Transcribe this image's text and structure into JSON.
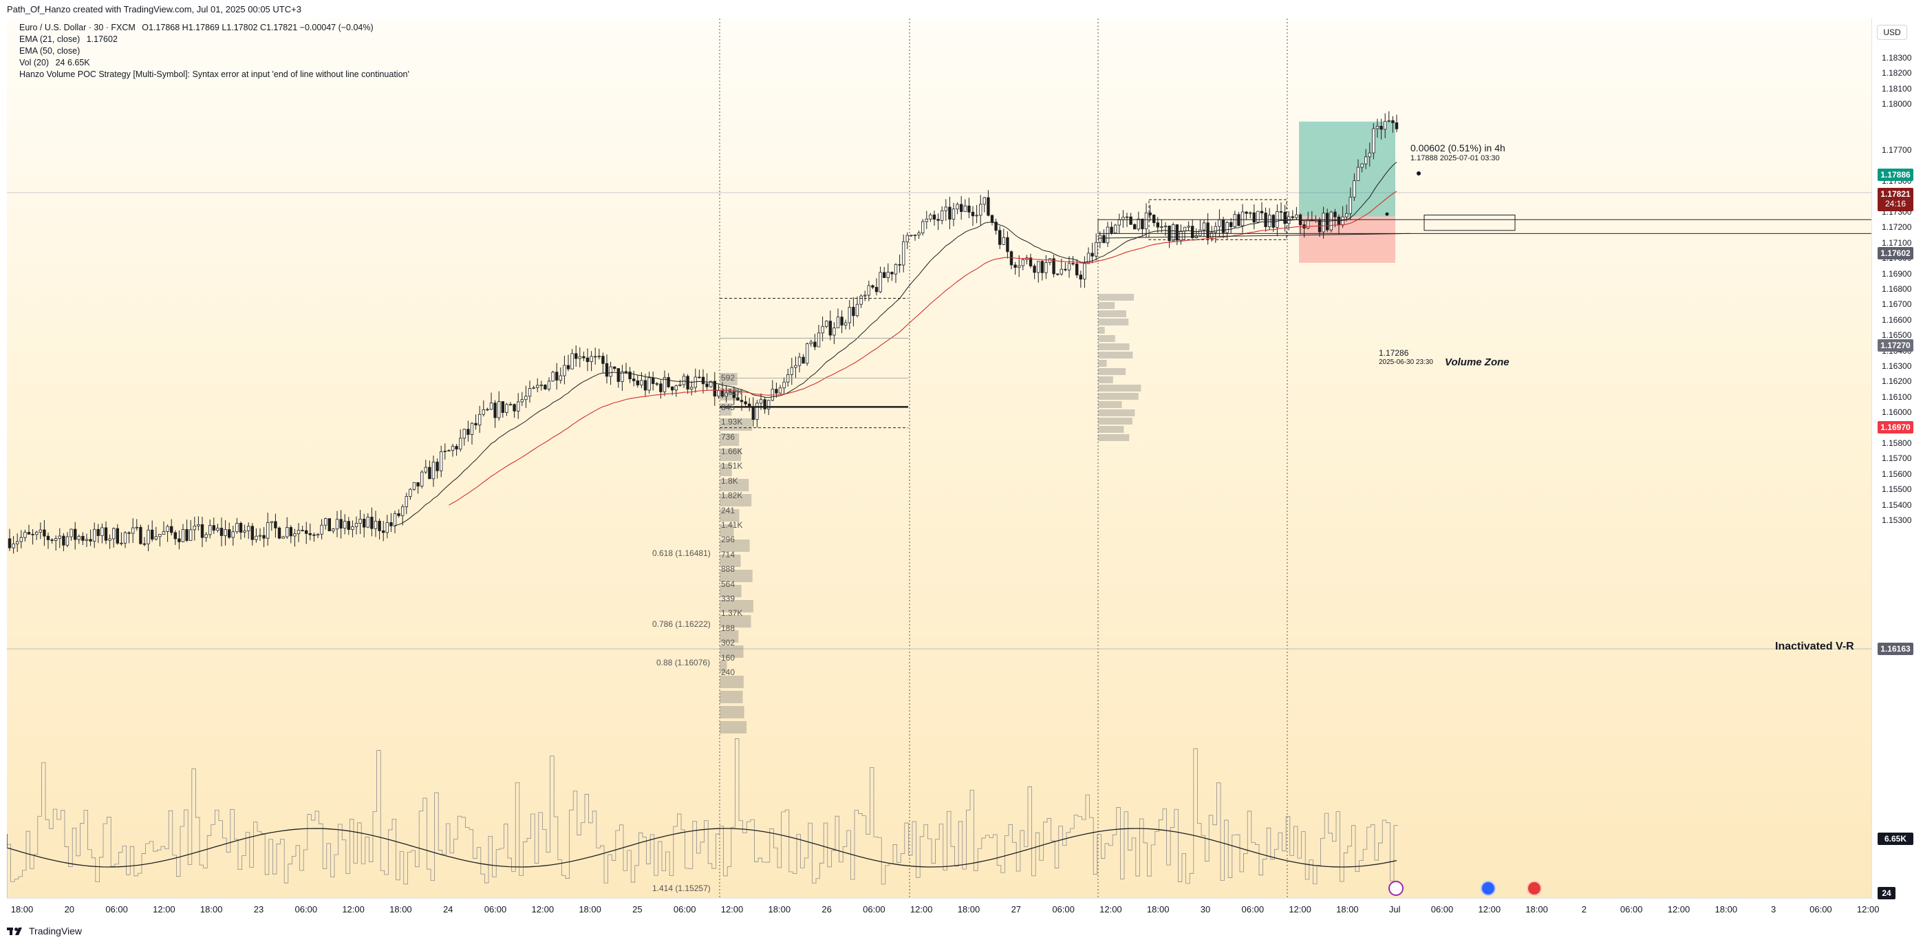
{
  "header": {
    "title": "Path_Of_Hanzo created with TradingView.com, Jul 01, 2025 00:05 UTC+3"
  },
  "legend": {
    "symbol": "Euro / U.S. Dollar · 30 · FXCM",
    "ohlc": "O1.17868  H1.17869  L1.17802  C1.17821  −0.00047 (−0.04%)",
    "ema21_label": "EMA (21, close)",
    "ema21_value": "1.17602",
    "ema50_label": "EMA (50, close)",
    "vol_label": "Vol (20)",
    "vol_value": "24  6.65K",
    "strategy_error": "Hanzo Volume POC Strategy [Multi-Symbol]: Syntax error at input 'end of line without line continuation'"
  },
  "price_axis": {
    "currency_button": "USD",
    "ticks": [
      "1.18300",
      "1.18200",
      "1.18100",
      "1.18000",
      "1.17700",
      "1.17500",
      "1.17400",
      "1.17300",
      "1.17200",
      "1.17100",
      "1.17000",
      "1.16900",
      "1.16800",
      "1.16700",
      "1.16600",
      "1.16500",
      "1.16400",
      "1.16300",
      "1.16200",
      "1.16100",
      "1.16000",
      "1.15900",
      "1.15800",
      "1.15700",
      "1.15600",
      "1.15500",
      "1.15400",
      "1.15300"
    ],
    "labels": {
      "target": {
        "value": "1.17886",
        "color": "#089981"
      },
      "last": {
        "value": "1.17821",
        "countdown": "24:16",
        "color": "#8b1b1b"
      },
      "ema21": {
        "value": "1.17602",
        "color": "#5d606b"
      },
      "entry": {
        "value": "1.17270",
        "color": "#6b6e78"
      },
      "stop": {
        "value": "1.16970",
        "color": "#f23645"
      },
      "hline": {
        "value": "1.16163",
        "color": "#5d606b"
      },
      "volume": {
        "value": "6.65K",
        "color": "#131722"
      },
      "vol_count": {
        "value": "24",
        "color": "#131722"
      }
    }
  },
  "time_axis": {
    "ticks": [
      "18:00",
      "20",
      "06:00",
      "12:00",
      "18:00",
      "23",
      "06:00",
      "12:00",
      "18:00",
      "24",
      "06:00",
      "12:00",
      "18:00",
      "25",
      "06:00",
      "12:00",
      "18:00",
      "26",
      "06:00",
      "12:00",
      "18:00",
      "27",
      "06:00",
      "12:00",
      "18:00",
      "30",
      "06:00",
      "12:00",
      "18:00",
      "Jul",
      "06:00",
      "12:00",
      "18:00",
      "2",
      "06:00",
      "12:00",
      "18:00",
      "3",
      "06:00",
      "12:00"
    ]
  },
  "annotations": {
    "measure_top": "0.00602 (0.51%) in 4h",
    "measure_bottom": "1.17888     2025-07-01  03:30",
    "entry_price": "1.17286",
    "entry_time": "2025-06-30 23:30",
    "volume_zone": "Volume Zone",
    "inactivated": "Inactivated  V-R",
    "fib_0618": "0.618 (1.16481)",
    "fib_0786": "0.786 (1.16222)",
    "fib_088": "0.88 (1.16076)",
    "fib_1414": "1.414 (1.15257)"
  },
  "volume_profile_labels": [
    "592",
    "1.52K",
    "845",
    "1.93K",
    "736",
    "1.66K",
    "1.51K",
    "1.8K",
    "1.82K",
    "241",
    "1.41K",
    "296",
    "714",
    "888",
    "564",
    "339",
    "1.37K",
    "188",
    "302",
    "160",
    "240"
  ],
  "footer": {
    "brand": "TradingView"
  },
  "colors": {
    "candle": "#1e1e1e",
    "ema21": "#1e1e1e",
    "ema50": "#d32f2f",
    "target_zone": "rgba(8,153,129,0.38)",
    "stop_zone": "rgba(242,54,69,0.28)"
  }
}
